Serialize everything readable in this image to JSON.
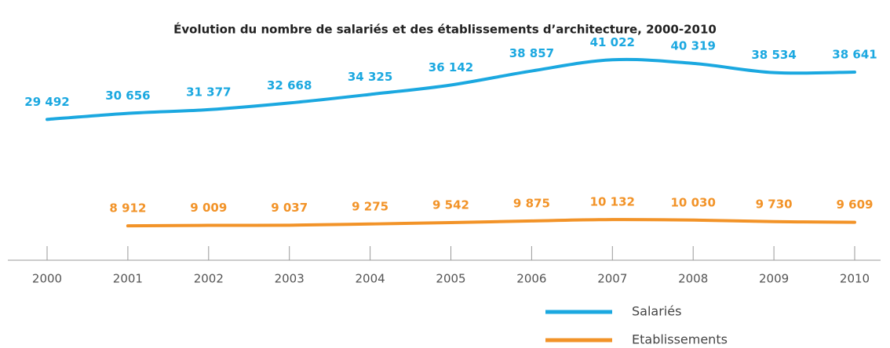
{
  "chart_data": {
    "type": "line",
    "title": "Évolution du nombre de salariés et des établissements d’architecture, 2000-2010",
    "categories": [
      "2000",
      "2001",
      "2002",
      "2003",
      "2004",
      "2005",
      "2006",
      "2007",
      "2008",
      "2009",
      "2010"
    ],
    "ylim": [
      0,
      45000
    ],
    "series": [
      {
        "name": "Salariés",
        "color": "#1ba8e0",
        "values": [
          29492,
          30656,
          31377,
          32668,
          34325,
          36142,
          38857,
          41022,
          40319,
          38534,
          38641
        ],
        "value_labels": [
          "29 492",
          "30 656",
          "31 377",
          "32 668",
          "34 325",
          "36 142",
          "38 857",
          "41 022",
          "40 319",
          "38 534",
          "38 641"
        ]
      },
      {
        "name": "Etablissements",
        "color": "#f29328",
        "values": [
          null,
          8912,
          9009,
          9037,
          9275,
          9542,
          9875,
          10132,
          10030,
          9730,
          9609
        ],
        "value_labels": [
          null,
          "8 912",
          "9 009",
          "9 037",
          "9 275",
          "9 542",
          "9 875",
          "10 132",
          "10 030",
          "9 730",
          "9 609"
        ]
      }
    ],
    "legend": "bottom-right"
  }
}
